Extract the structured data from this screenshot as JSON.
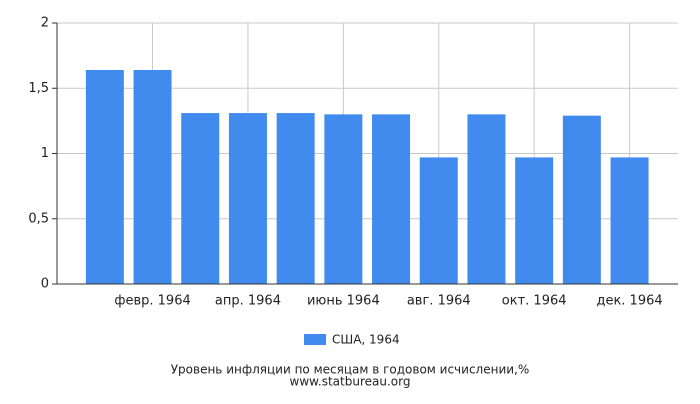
{
  "chart_data": {
    "type": "bar",
    "title": "Уровень инфляции по месяцам в годовом исчислении,%",
    "subtitle": "www.statbureau.org",
    "categories": [
      null,
      "февр. 1964",
      null,
      "апр. 1964",
      null,
      "июнь 1964",
      null,
      "авг. 1964",
      null,
      "окт. 1964",
      null,
      "дек. 1964"
    ],
    "series": [
      {
        "name": "США, 1964",
        "color": "#428bee",
        "values": [
          1.64,
          1.64,
          1.31,
          1.31,
          1.31,
          1.3,
          1.3,
          0.97,
          1.3,
          0.97,
          1.29,
          0.97
        ]
      }
    ],
    "ylim": [
      0,
      2
    ],
    "yticks": [
      0,
      {
        "value": 0.5,
        "label": "0,5"
      },
      1,
      {
        "value": 1.5,
        "label": "1,5"
      },
      2
    ],
    "grid": true,
    "legend": "bottom"
  }
}
